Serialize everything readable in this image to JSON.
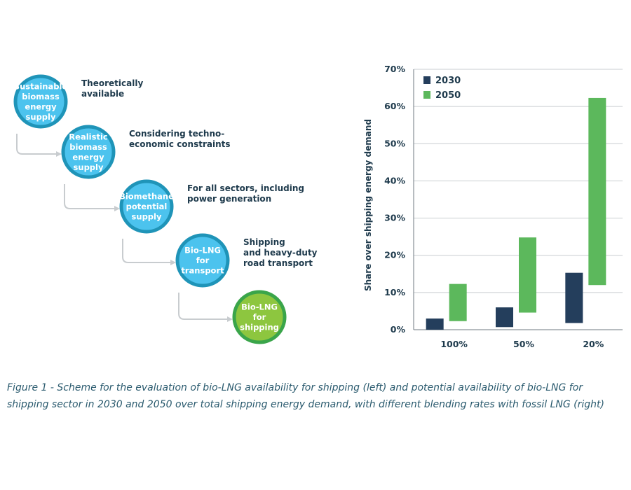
{
  "flow": {
    "nodes": [
      {
        "lines": [
          "Sustainable",
          "biomass",
          "energy",
          "supply"
        ],
        "description": [
          "Theoretically",
          "available"
        ],
        "fill": "#4cc3ee",
        "ring": "#1f94b8"
      },
      {
        "lines": [
          "Realistic",
          "biomass",
          "energy",
          "supply"
        ],
        "description": [
          "Considering techno-",
          "economic constraints"
        ],
        "fill": "#4cc3ee",
        "ring": "#1f94b8"
      },
      {
        "lines": [
          "Biomethane",
          "potential",
          "supply"
        ],
        "description": [
          "For all sectors, including",
          "power generation"
        ],
        "fill": "#4cc3ee",
        "ring": "#1f94b8"
      },
      {
        "lines": [
          "Bio-LNG",
          "for",
          "transport"
        ],
        "description": [
          "Shipping",
          "and heavy-duty",
          "road transport"
        ],
        "fill": "#4cc3ee",
        "ring": "#1f94b8"
      },
      {
        "lines": [
          "Bio-LNG",
          "for",
          "shipping"
        ],
        "description": [],
        "fill": "#8dc63f",
        "ring": "#3aa54a"
      }
    ],
    "connector_color": "#c8cccf"
  },
  "chart_data": {
    "type": "bar",
    "subtype": "floating-range",
    "categories": [
      "100%",
      "50%",
      "20%"
    ],
    "ylabel": "Share over shipping energy demand",
    "ylim": [
      0,
      70
    ],
    "yticks": [
      "0%",
      "10%",
      "20%",
      "30%",
      "40%",
      "50%",
      "60%",
      "70%"
    ],
    "grid": true,
    "legend_position": "top-left",
    "series": [
      {
        "name": "2030",
        "color": "#243e5c",
        "ranges": [
          [
            0,
            3
          ],
          [
            0.7,
            6
          ],
          [
            1.8,
            15.3
          ]
        ]
      },
      {
        "name": "2050",
        "color": "#5cb85c",
        "ranges": [
          [
            2.3,
            12.3
          ],
          [
            4.6,
            24.8
          ],
          [
            12,
            62.3
          ]
        ]
      }
    ]
  },
  "caption": "Figure 1 - Scheme for the evaluation of bio-LNG availability for shipping (left) and potential availability of bio-LNG for shipping sector in 2030 and 2050 over total shipping energy demand, with different blending rates with fossil LNG (right)"
}
